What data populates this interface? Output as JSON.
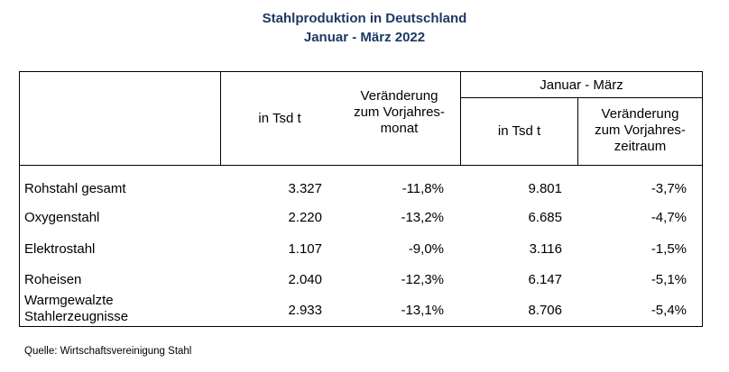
{
  "title_line1": "Stahlproduktion in Deutschland",
  "title_line2": "Januar - März 2022",
  "headers": {
    "col_tsd": "in Tsd t",
    "col_change_month": [
      "Veränderung",
      "zum Vorjahres-",
      "monat"
    ],
    "group": "Januar - März",
    "col_tsd_period": "in Tsd t",
    "col_change_period": [
      "Veränderung",
      "zum Vorjahres-",
      "zeitraum"
    ]
  },
  "rows": [
    {
      "label": [
        "Rohstahl gesamt"
      ],
      "tsd": "3.327",
      "chg_month": "-11,8%",
      "tsd_period": "9.801",
      "chg_period": "-3,7%"
    },
    {
      "label": [
        "Oxygenstahl"
      ],
      "tsd": "2.220",
      "chg_month": "-13,2%",
      "tsd_period": "6.685",
      "chg_period": "-4,7%"
    },
    {
      "label": [
        "Elektrostahl"
      ],
      "tsd": "1.107",
      "chg_month": "-9,0%",
      "tsd_period": "3.116",
      "chg_period": "-1,5%"
    },
    {
      "label": [
        "Roheisen"
      ],
      "tsd": "2.040",
      "chg_month": "-12,3%",
      "tsd_period": "6.147",
      "chg_period": "-5,1%"
    },
    {
      "label": [
        "Warmgewalzte",
        "Stahlerzeugnisse"
      ],
      "tsd": "2.933",
      "chg_month": "-13,1%",
      "tsd_period": "8.706",
      "chg_period": "-5,4%"
    }
  ],
  "source": "Quelle: Wirtschaftsvereinigung Stahl",
  "colors": {
    "title": "#1f3864",
    "lines": "#000000"
  }
}
